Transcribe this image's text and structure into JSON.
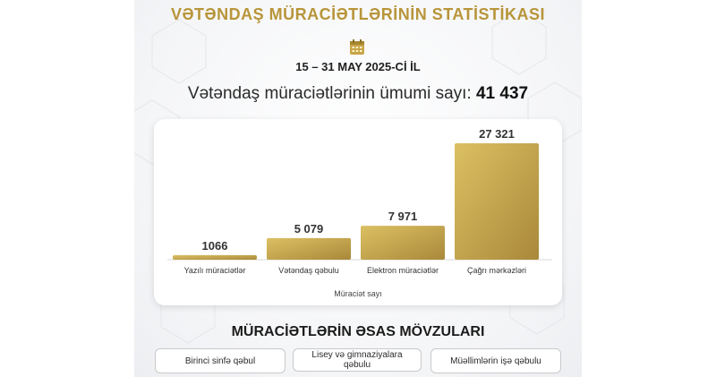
{
  "title": "VƏTƏNDAŞ MÜRACİƏTLƏRİNİN STATİSTİKASI",
  "date_range": "15 – 31 MAY 2025-Cİ İL",
  "total": {
    "label": "Vətəndaş müraciətlərinin ümumi sayı:",
    "value": "41 437"
  },
  "icons": {
    "calendar": "calendar-icon"
  },
  "colors": {
    "gold": "#b8953a",
    "bar_light": "#d9bc5c",
    "bar_dark": "#a88a35"
  },
  "chart_data": {
    "type": "bar",
    "categories": [
      "Yazılı müraciətlər",
      "Vətəndaş qəbulu",
      "Elektron müraciətlər",
      "Çağrı mərkəzləri"
    ],
    "values": [
      1066,
      5079,
      7971,
      27321
    ],
    "value_labels": [
      "1066",
      "5 079",
      "7 971",
      "27 321"
    ],
    "xlabel": "Müraciət sayı",
    "ylabel": "",
    "ylim": [
      0,
      27321
    ],
    "grid": false
  },
  "topics": {
    "heading": "MÜRACİƏTLƏRİN ƏSAS MÖVZULARI",
    "items": [
      "Birinci sinfə qəbul",
      "Lisey və gimnaziyalara qəbulu",
      "Müəllimlərin işə qəbulu"
    ]
  }
}
